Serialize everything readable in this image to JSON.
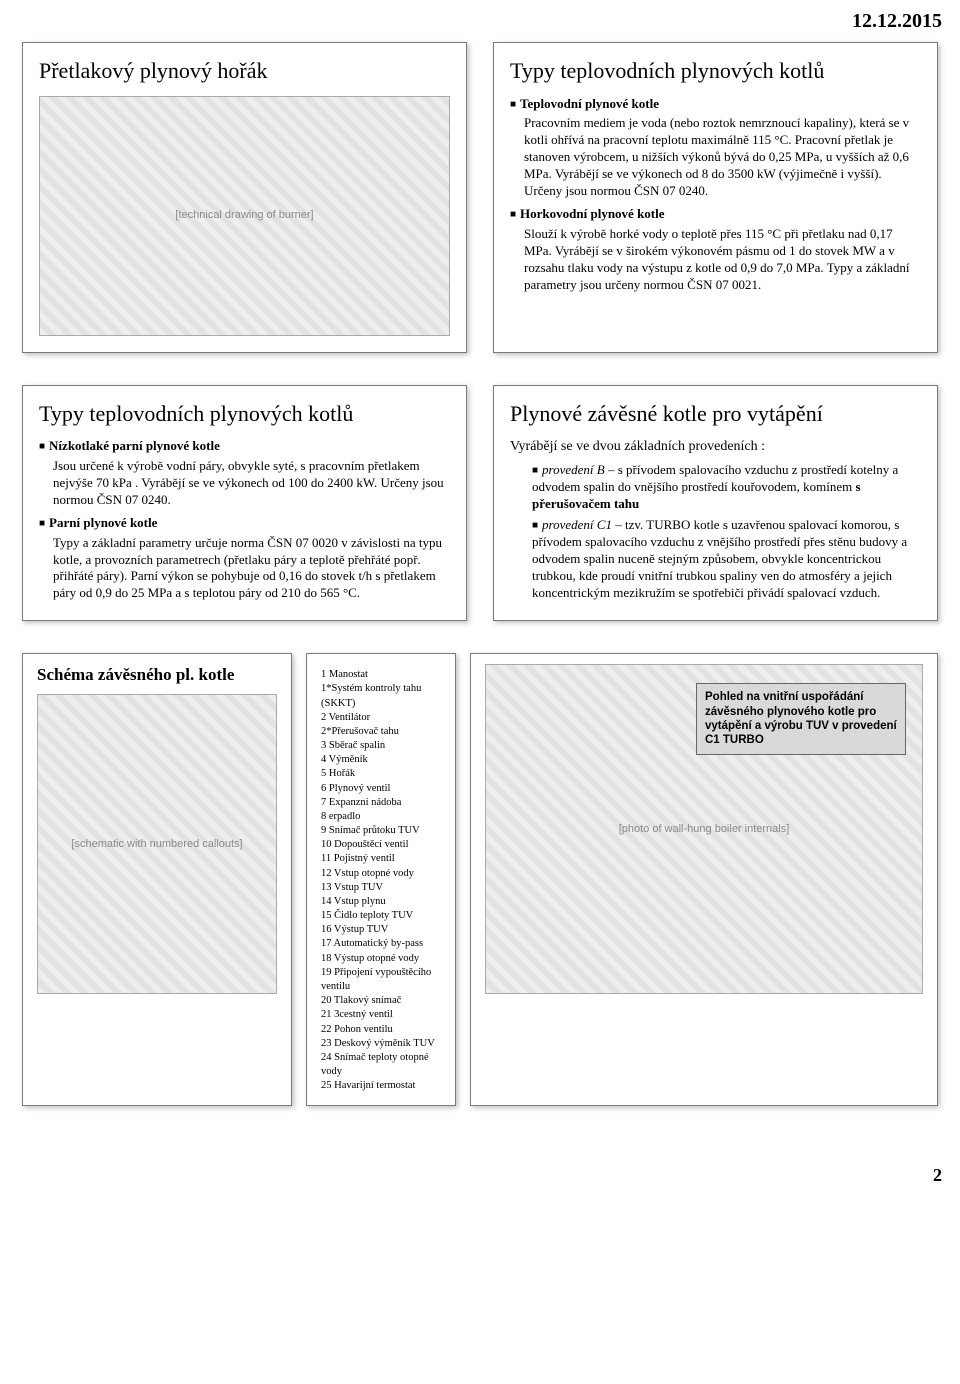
{
  "date": "12.12.2015",
  "page_number": "2",
  "panel1": {
    "title": "Přetlakový plynový hořák",
    "img_alt": "[technical drawing of burner]"
  },
  "panel2": {
    "title": "Typy teplovodních plynových kotlů",
    "h1": "Teplovodní plynové kotle",
    "p1": "Pracovním mediem je voda (nebo roztok nemrznoucí kapaliny), která se v kotli ohřívá na pracovní teplotu maximálně 115 °C. Pracovní přetlak je stanoven výrobcem, u nižších výkonů bývá do 0,25 MPa, u vyšších až 0,6 MPa. Vyrábějí se ve výkonech od 8 do 3500 kW (výjimečně i vyšší). Určeny jsou normou ČSN 07 0240.",
    "h2": "Horkovodní plynové kotle",
    "p2": "Slouží k výrobě horké vody o teplotě přes 115 °C při přetlaku nad 0,17 MPa. Vyrábějí se v širokém výkonovém pásmu od 1 do stovek MW a v rozsahu tlaku vody na výstupu z kotle od 0,9 do 7,0 MPa. Typy a základní parametry jsou určeny normou ČSN 07 0021."
  },
  "panel3": {
    "title": "Typy teplovodních plynových kotlů",
    "h1": "Nízkotlaké parní plynové kotle",
    "p1": "Jsou určené k výrobě vodní páry, obvykle syté, s pracovním přetlakem nejvýše 70 kPa . Vyrábějí se ve výkonech od 100 do 2400 kW. Určeny jsou normou ČSN 07 0240.",
    "h2": "Parní plynové kotle",
    "p2": "Typy a základní parametry určuje norma ČSN 07 0020 v závislosti na typu kotle, a provozních parametrech (přetlaku páry a teplotě přehřáté popř. přihřáté páry). Parní výkon se pohybuje od 0,16 do stovek t/h s přetlakem páry od 0,9 do 25 MPa a s teplotou páry od 210 do 565 °C."
  },
  "panel4": {
    "title": "Plynové závěsné kotle pro vytápění",
    "intro": "Vyrábějí se ve dvou základních provedeních :",
    "b1_label": "provedení B",
    "b1_body": " – s přívodem spalovacího vzduchu z prostředí kotelny a odvodem spalin do vnějšího prostředí kouřovodem, komínem ",
    "b1_bold": "s přerušovačem tahu",
    "b2_label": "provedení C1",
    "b2_body": " – tzv. TURBO kotle s uzavřenou spalovací komorou, s přívodem spalovacího vzduchu z vnějšího prostředí přes stěnu budovy a odvodem spalin nuceně stejným způsobem, obvykle koncentrickou trubkou, kde proudí vnitřní trubkou spaliny ven do atmosféry a jejich koncentrickým mezikružím se spotřebiči přivádí spalovací vzduch."
  },
  "panel5": {
    "title": "Schéma závěsného pl. kotle",
    "img_alt": "[schematic with numbered callouts]"
  },
  "legend": [
    "1 Manostat",
    "1*Systém kontroly tahu (SKKT)",
    "2 Ventilátor",
    "2*Přerušovač tahu",
    "3 Sběrač spalin",
    "4 Výměník",
    "5 Hořák",
    "6 Plynový ventil",
    "7 Expanzní nádoba",
    "8 erpadlo",
    "9 Snímač průtoku TUV",
    "10 Dopouštěcí ventil",
    "11 Pojistný ventil",
    "12 Vstup otopné vody",
    "13 Vstup TUV",
    "14 Vstup plynu",
    "15 Čidlo teploty TUV",
    "16 Výstup TUV",
    "17 Automatický by-pass",
    "18 Výstup otopné vody",
    "19 Připojení vypouštěcího ventilu",
    "20 Tlakový snímač",
    "21 3cestný ventil",
    "22 Pohon ventilu",
    "23 Deskový výměník TUV",
    "24 Snímač teploty otopné vody",
    "25 Havarijní termostat"
  ],
  "panel7": {
    "caption": "Pohled na vnitřní uspořádání závěsného plynového kotle pro vytápění a výrobu TUV v provedení C1 TURBO",
    "img_alt": "[photo of wall-hung boiler internals]"
  }
}
